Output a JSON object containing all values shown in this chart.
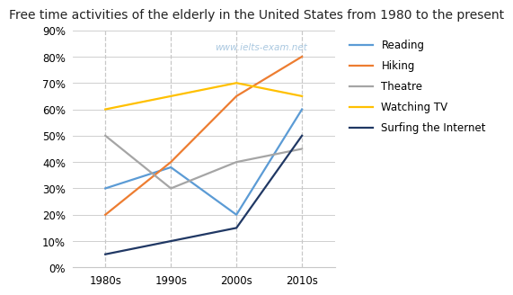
{
  "title": "Free time activities of the elderly in the United States from 1980 to the present",
  "watermark": "www.ielts-exam.net",
  "x_labels": [
    "1980s",
    "1990s",
    "2000s",
    "2010s"
  ],
  "x_values": [
    1,
    2,
    3,
    4
  ],
  "series": [
    {
      "name": "Reading",
      "color": "#5B9BD5",
      "values": [
        30,
        38,
        20,
        60
      ]
    },
    {
      "name": "Hiking",
      "color": "#ED7D31",
      "values": [
        20,
        40,
        65,
        80
      ]
    },
    {
      "name": "Theatre",
      "color": "#A5A5A5",
      "values": [
        50,
        30,
        40,
        45
      ]
    },
    {
      "name": "Watching TV",
      "color": "#FFC000",
      "values": [
        60,
        65,
        70,
        65
      ]
    },
    {
      "name": "Surfing the Internet",
      "color": "#203864",
      "values": [
        5,
        10,
        15,
        50
      ]
    }
  ],
  "ylim": [
    0,
    90
  ],
  "yticks": [
    0,
    10,
    20,
    30,
    40,
    50,
    60,
    70,
    80,
    90
  ],
  "xlim": [
    0.5,
    4.5
  ],
  "background_color": "#ffffff",
  "grid_color": "#c8c8c8",
  "title_fontsize": 10,
  "watermark_color": "#aac8e0",
  "legend_fontsize": 8.5,
  "tick_fontsize": 8.5
}
